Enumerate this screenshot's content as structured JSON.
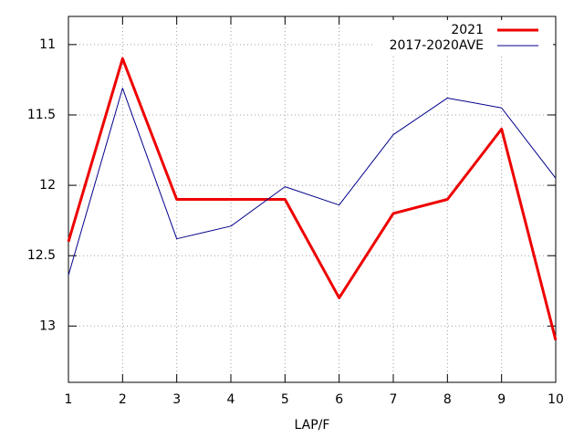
{
  "chart_data": {
    "type": "line",
    "x_label": "LAP/F",
    "x": [
      1,
      2,
      3,
      4,
      5,
      6,
      7,
      8,
      9,
      10
    ],
    "series": [
      {
        "name": "2021",
        "color": "#ee0000",
        "width": 3,
        "values": [
          12.4,
          11.1,
          12.1,
          12.1,
          12.1,
          12.8,
          12.2,
          12.1,
          11.6,
          13.1
        ]
      },
      {
        "name": "2017-2020AVE",
        "color": "#00008b",
        "width": 1,
        "values": [
          12.64,
          11.31,
          12.38,
          12.29,
          12.01,
          12.14,
          11.64,
          11.38,
          11.45,
          11.95
        ]
      }
    ],
    "xlim": [
      1,
      10
    ],
    "xticks": [
      1,
      2,
      3,
      4,
      5,
      6,
      7,
      8,
      9,
      10
    ],
    "ylim": [
      10.8,
      13.4
    ],
    "y_inverted": true,
    "yticks": [
      11,
      11.5,
      12,
      12.5,
      13
    ],
    "grid": true,
    "legend": "top-right"
  }
}
